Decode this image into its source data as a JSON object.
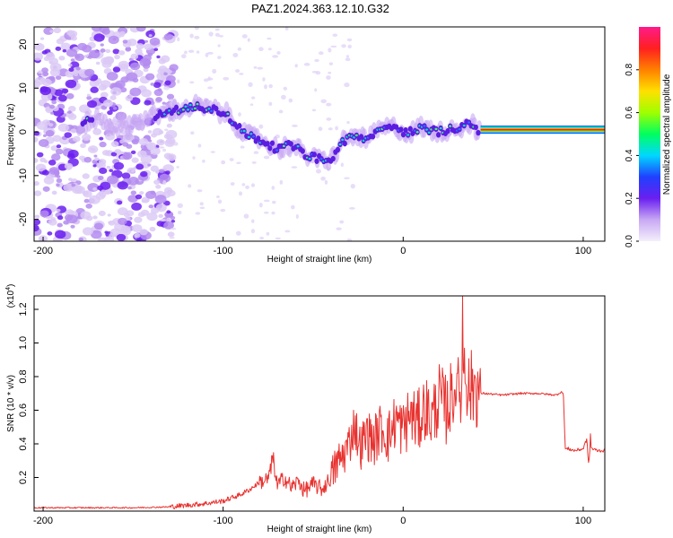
{
  "title": "PAZ1.2024.363.12.10.G32",
  "colors": {
    "snr_line": "#e8322f",
    "ridge_low": "#5b1ee0",
    "ridge_high": "#ff1a1a"
  },
  "chart_data": [
    {
      "type": "heatmap",
      "xlabel": "Height of straight line (km)",
      "ylabel": "Frequency (Hz)",
      "xlim": [
        -205,
        112
      ],
      "ylim": [
        -25,
        24
      ],
      "x_ticks": [
        -200,
        -100,
        0,
        100
      ],
      "y_ticks": [
        -20,
        -10,
        0,
        10,
        20
      ],
      "colorbar": {
        "label": "Normalized spectral amplitude",
        "range": [
          0,
          1
        ],
        "ticks": [
          "0.0",
          "0.2",
          "0.4",
          "0.6",
          "0.8"
        ],
        "colormap": [
          "#f4f0fb",
          "#c8a8f4",
          "#6a1ff0",
          "#2040ff",
          "#00d8ff",
          "#00ff60",
          "#a0ff00",
          "#ffe000",
          "#ff8000",
          "#ff2020",
          "#ff1a8a"
        ]
      },
      "ridge": [
        [
          -178,
          2
        ],
        [
          -170,
          3
        ],
        [
          -160,
          1
        ],
        [
          -150,
          2
        ],
        [
          -135,
          4
        ],
        [
          -125,
          5
        ],
        [
          -115,
          6
        ],
        [
          -105,
          5
        ],
        [
          -98,
          4
        ],
        [
          -92,
          1
        ],
        [
          -85,
          -1
        ],
        [
          -78,
          -2
        ],
        [
          -70,
          -4
        ],
        [
          -62,
          -3
        ],
        [
          -55,
          -5
        ],
        [
          -48,
          -6
        ],
        [
          -42,
          -7
        ],
        [
          -38,
          -5
        ],
        [
          -35,
          -3
        ],
        [
          -30,
          -1
        ],
        [
          -25,
          -1
        ],
        [
          -20,
          -2
        ],
        [
          -15,
          0
        ],
        [
          -10,
          1
        ],
        [
          -5,
          1
        ],
        [
          0,
          0
        ],
        [
          5,
          0
        ],
        [
          10,
          1
        ],
        [
          20,
          0
        ],
        [
          30,
          1
        ],
        [
          38,
          2
        ],
        [
          42,
          0
        ],
        [
          60,
          0
        ],
        [
          80,
          0
        ],
        [
          100,
          0
        ],
        [
          112,
          0
        ]
      ],
      "saturated_ridge": {
        "x_range": [
          43,
          112
        ],
        "frequency": 0.5
      },
      "noise_region": {
        "x_range": [
          -205,
          -135
        ]
      }
    },
    {
      "type": "line",
      "xlabel": "Height of straight line (km)",
      "ylabel": "SNR (10 * v/v)",
      "y_multiplier": "(x10",
      "y_multiplier_exp": "4",
      "y_multiplier_close": ")",
      "xlim": [
        -205,
        112
      ],
      "ylim": [
        0.0,
        1.28
      ],
      "x_ticks": [
        -200,
        -100,
        0,
        100
      ],
      "y_ticks": [
        0.2,
        0.4,
        0.6,
        0.8,
        1.0,
        1.2
      ],
      "y_tick_labels": [
        "0.2",
        "0.4",
        "0.6",
        "0.8",
        "1.0",
        "1.2"
      ],
      "series": [
        {
          "x": [
            -205,
            -190,
            -170,
            -150,
            -130,
            -120,
            -110,
            -100,
            -95,
            -90,
            -85,
            -80,
            -75,
            -72,
            -70,
            -66,
            -62,
            -58,
            -55,
            -50,
            -45,
            -40,
            -37,
            -34,
            -30,
            -27,
            -24,
            -20,
            -16,
            -12,
            -8,
            -4,
            0,
            4,
            8,
            12,
            16,
            20,
            24,
            28,
            32,
            34,
            36,
            40,
            43,
            45,
            55,
            65,
            75,
            85,
            88,
            89,
            90,
            92,
            95,
            100,
            102,
            103,
            104,
            105,
            108,
            112
          ],
          "y": [
            0.02,
            0.02,
            0.02,
            0.02,
            0.025,
            0.035,
            0.045,
            0.06,
            0.08,
            0.1,
            0.13,
            0.17,
            0.19,
            0.3,
            0.15,
            0.2,
            0.14,
            0.18,
            0.12,
            0.16,
            0.13,
            0.2,
            0.28,
            0.32,
            0.4,
            0.52,
            0.38,
            0.45,
            0.42,
            0.5,
            0.44,
            0.55,
            0.48,
            0.58,
            0.52,
            0.62,
            0.55,
            0.68,
            0.6,
            0.72,
            0.7,
            0.95,
            0.72,
            0.74,
            0.7,
            0.7,
            0.69,
            0.7,
            0.7,
            0.69,
            0.71,
            0.69,
            0.37,
            0.37,
            0.36,
            0.37,
            0.43,
            0.28,
            0.39,
            0.37,
            0.36,
            0.36
          ]
        }
      ],
      "spikes": [
        [
          -73,
          0.33
        ],
        [
          -20,
          0.55
        ],
        [
          30,
          0.82
        ],
        [
          33,
          1.28
        ],
        [
          40,
          0.8
        ],
        [
          104,
          0.46
        ]
      ]
    }
  ]
}
